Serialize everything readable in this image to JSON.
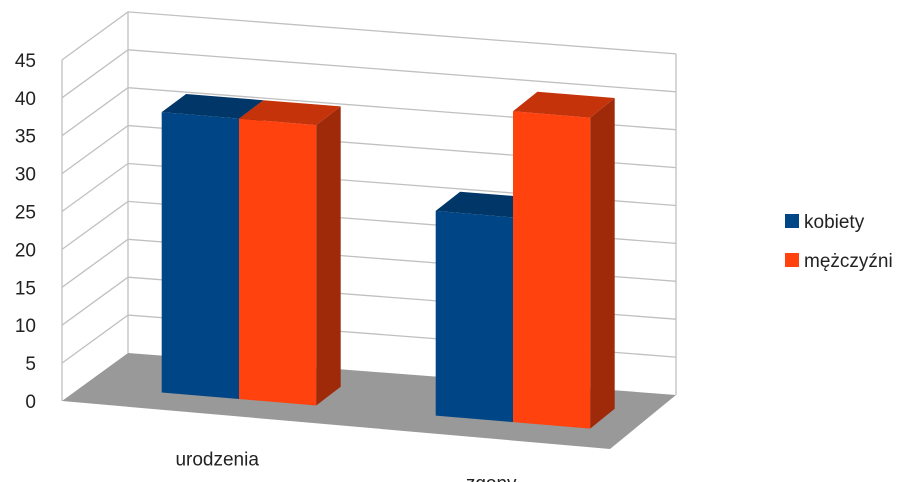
{
  "chart_data": {
    "type": "bar",
    "style": "3d-clustered-column",
    "categories": [
      "urodzenia",
      "zgony"
    ],
    "series": [
      {
        "name": "kobiety",
        "values": [
          37,
          27
        ],
        "color": "#004586",
        "top_color": "#003768",
        "side_color": "#002b52"
      },
      {
        "name": "mężczyźni",
        "values": [
          37,
          41
        ],
        "color": "#ff420e",
        "top_color": "#c5330b",
        "side_color": "#9e2a0a"
      }
    ],
    "y_ticks": [
      "0",
      "5",
      "10",
      "15",
      "20",
      "25",
      "30",
      "35",
      "40",
      "45"
    ],
    "ylim": [
      0,
      45
    ],
    "grid": true,
    "legend_position": "right",
    "floor_color": "#999999",
    "grid_color": "#c0c0c0"
  }
}
